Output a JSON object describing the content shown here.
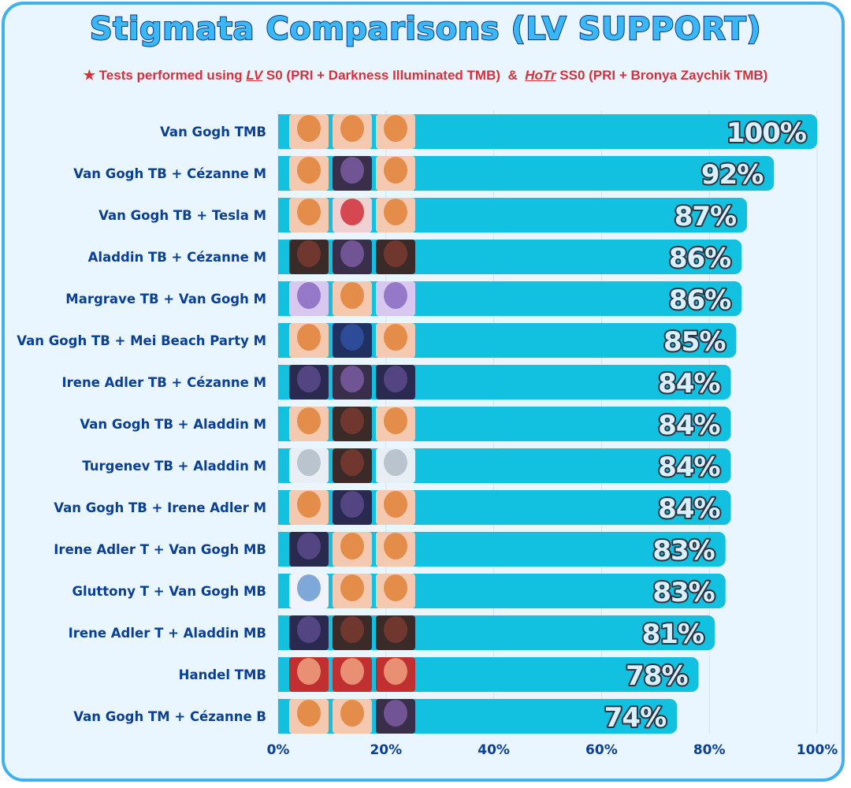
{
  "chart_data": {
    "type": "bar",
    "orientation": "horizontal",
    "title": "Stigmata Comparisons (LV SUPPORT)",
    "subtitle": {
      "star": "★",
      "part1": "Tests performed using ",
      "lv": "LV",
      "part2": " S0 (PRI + Darkness Illuminated TMB)  &  ",
      "hotr": "HoTr",
      "part3": " SS0 (PRI + Bronya Zaychik TMB)"
    },
    "categories": [
      "Van Gogh TMB",
      "Van Gogh TB + Cézanne M",
      "Van Gogh TB + Tesla M",
      "Aladdin TB + Cézanne M",
      "Margrave TB + Van Gogh M",
      "Van Gogh TB + Mei Beach Party M",
      "Irene Adler TB + Cézanne M",
      "Van Gogh TB + Aladdin M",
      "Turgenev TB + Aladdin M",
      "Van Gogh TB + Irene Adler M",
      "Irene Adler T + Van Gogh MB",
      "Gluttony T + Van Gogh MB",
      "Irene Adler T + Aladdin MB",
      "Handel TMB",
      "Van Gogh TM + Cézanne B"
    ],
    "values": [
      100,
      92,
      87,
      86,
      86,
      85,
      84,
      84,
      84,
      84,
      83,
      83,
      81,
      78,
      74
    ],
    "value_labels": [
      "100%",
      "92%",
      "87%",
      "86%",
      "86%",
      "85%",
      "84%",
      "84%",
      "84%",
      "84%",
      "83%",
      "83%",
      "81%",
      "78%",
      "74%"
    ],
    "portraits": [
      [
        "van-gogh-t",
        "van-gogh-m",
        "van-gogh-b"
      ],
      [
        "van-gogh-t",
        "cezanne-m",
        "van-gogh-b"
      ],
      [
        "van-gogh-t",
        "tesla-m",
        "van-gogh-b"
      ],
      [
        "aladdin-t",
        "cezanne-m",
        "aladdin-b"
      ],
      [
        "margrave-t",
        "van-gogh-m",
        "margrave-b"
      ],
      [
        "van-gogh-t",
        "mei-beach-party-m",
        "van-gogh-b"
      ],
      [
        "irene-adler-t",
        "cezanne-m",
        "irene-adler-b"
      ],
      [
        "van-gogh-t",
        "aladdin-m",
        "van-gogh-b"
      ],
      [
        "turgenev-t",
        "aladdin-m",
        "turgenev-b"
      ],
      [
        "van-gogh-t",
        "irene-adler-m",
        "van-gogh-b"
      ],
      [
        "irene-adler-t",
        "van-gogh-m",
        "van-gogh-b"
      ],
      [
        "gluttony-t",
        "van-gogh-m",
        "van-gogh-b"
      ],
      [
        "irene-adler-t",
        "aladdin-m",
        "aladdin-b"
      ],
      [
        "handel-t",
        "handel-m",
        "handel-b"
      ],
      [
        "van-gogh-t",
        "van-gogh-m",
        "cezanne-b"
      ]
    ],
    "xlim": [
      0,
      100
    ],
    "xticks": [
      "0%",
      "20%",
      "40%",
      "60%",
      "80%",
      "100%"
    ],
    "grid": true,
    "colors": {
      "bar": "#12c0df",
      "label": "#0a3f96",
      "value_fill": "#d8f0ff",
      "value_stroke": "#2c3440",
      "subtitle": "#d8303a",
      "border": "#3fb0f0",
      "background": "#eaf6ff"
    }
  }
}
